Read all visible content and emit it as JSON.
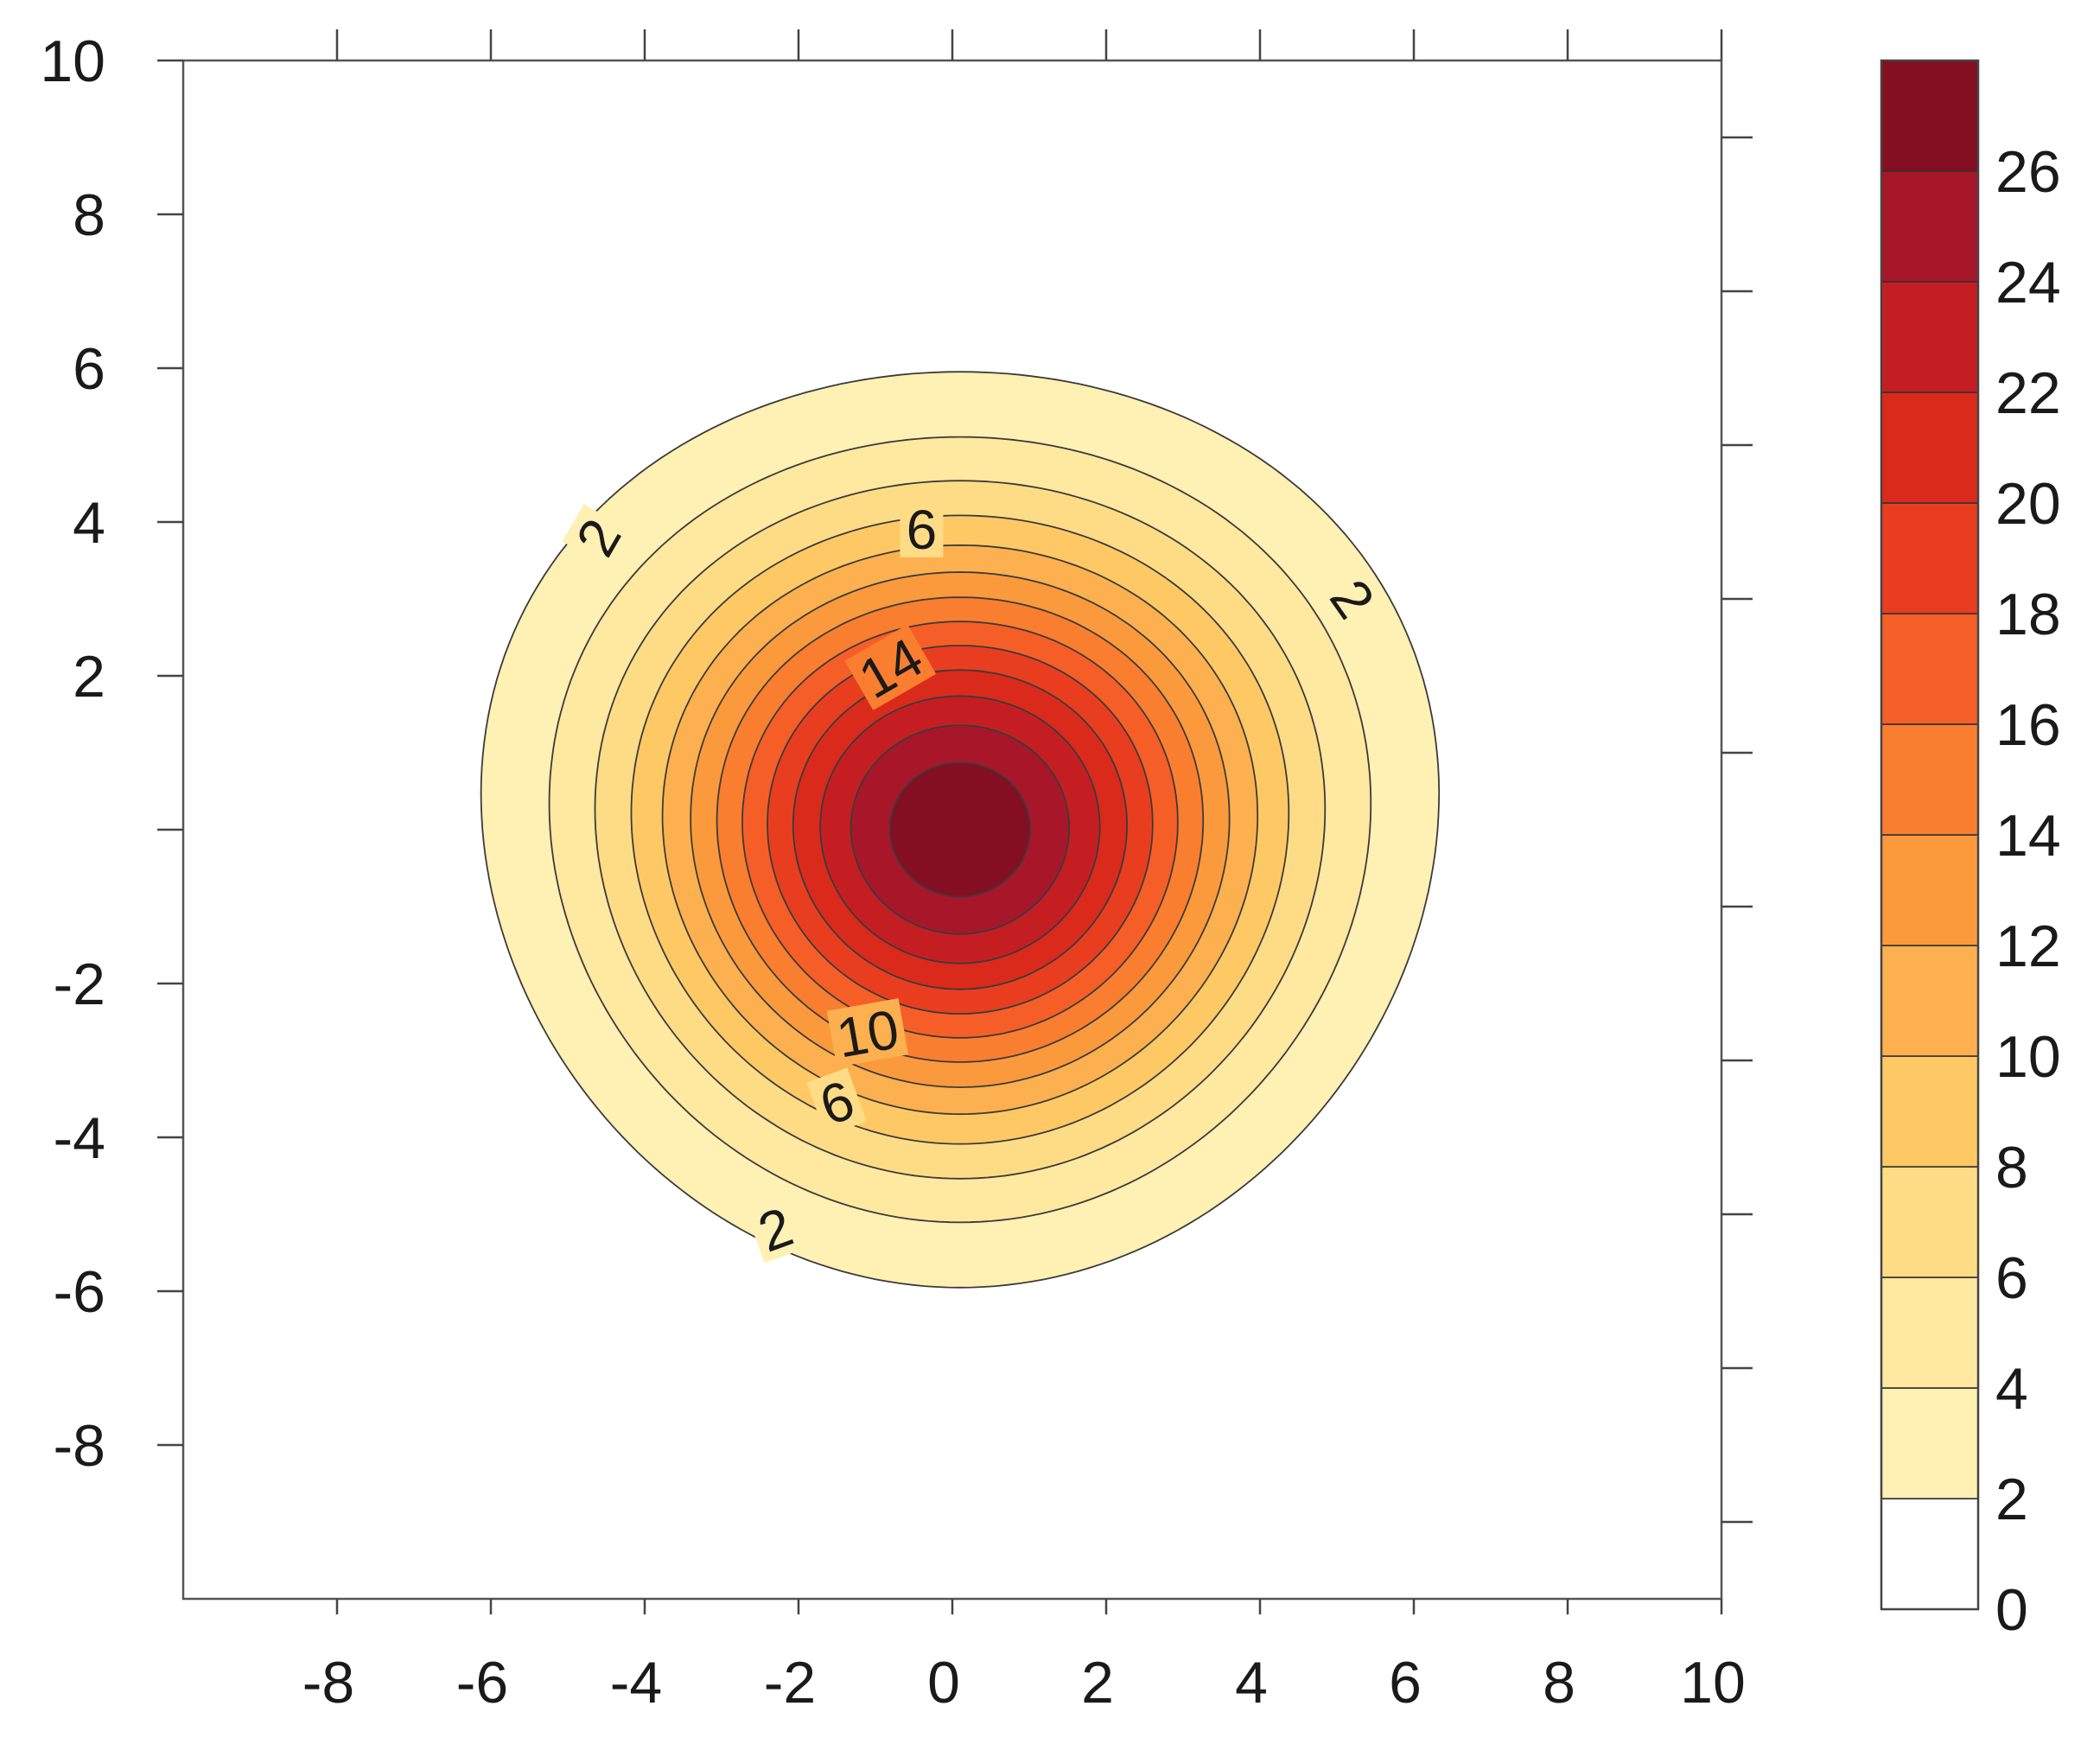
{
  "chart_data": {
    "type": "contour",
    "title": "",
    "xlabel": "",
    "ylabel": "",
    "xlim": [
      -10,
      10
    ],
    "ylim": [
      -10,
      10
    ],
    "x_ticks": [
      -8,
      -6,
      -4,
      -2,
      0,
      2,
      4,
      6,
      8,
      10
    ],
    "y_ticks": [
      10,
      8,
      6,
      4,
      2,
      -2,
      -4,
      -6,
      -8
    ],
    "grid": false,
    "field": {
      "form": "gaussian",
      "peak_value": 27.5,
      "center": [
        0.1,
        0.0
      ],
      "sigma_x": 2.72,
      "sigma_y": 2.6,
      "y_shift_factor": 0.012
    },
    "levels": [
      2,
      4,
      6,
      8,
      10,
      12,
      14,
      16,
      18,
      20,
      22,
      24,
      26
    ],
    "contour_labels": [
      {
        "text": "2",
        "x": -4.6,
        "y": 3.8,
        "angle": -60
      },
      {
        "text": "6",
        "x": -0.4,
        "y": 3.9,
        "angle": 0
      },
      {
        "text": "14",
        "x": -0.8,
        "y": 2.1,
        "angle": -30
      },
      {
        "text": "2",
        "x": 5.2,
        "y": 3.0,
        "angle": 55
      },
      {
        "text": "10",
        "x": -1.1,
        "y": -2.65,
        "angle": -10
      },
      {
        "text": "6",
        "x": -1.5,
        "y": -3.55,
        "angle": -20
      },
      {
        "text": "2",
        "x": -2.3,
        "y": -5.2,
        "angle": -20
      }
    ],
    "colorbar": {
      "levels": [
        0,
        2,
        4,
        6,
        8,
        10,
        12,
        14,
        16,
        18,
        20,
        22,
        24,
        26,
        28
      ],
      "tick_labels": [
        "0",
        "2",
        "4",
        "6",
        "8",
        "10",
        "12",
        "14",
        "16",
        "18",
        "20",
        "22",
        "24",
        "26"
      ],
      "colors": [
        "#ffffff",
        "#fff0b3",
        "#ffe8a0",
        "#fedc86",
        "#fec965",
        "#fdb04f",
        "#fb9a3c",
        "#fa7e2f",
        "#f65e27",
        "#e83e1f",
        "#d92a1c",
        "#c51e22",
        "#a8162a",
        "#840f22"
      ]
    }
  }
}
